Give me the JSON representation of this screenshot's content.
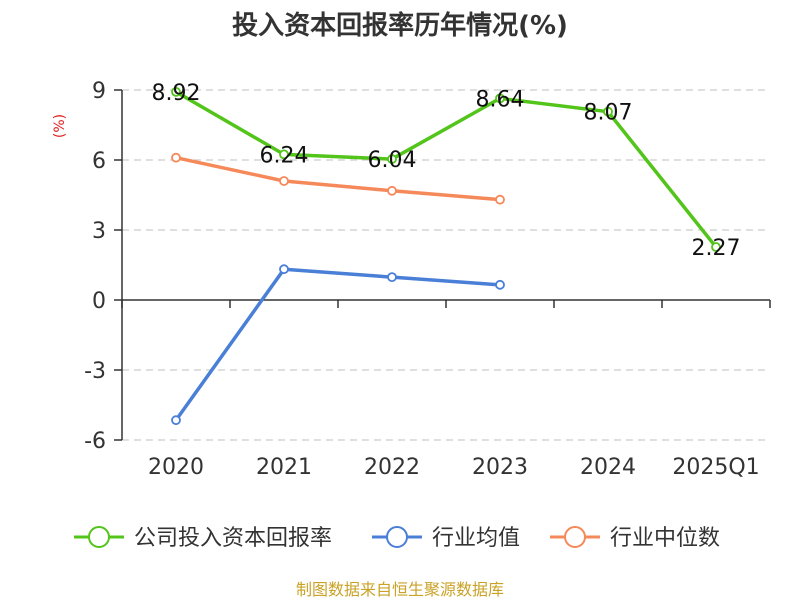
{
  "chart_data": {
    "type": "line",
    "title": "投入资本回报率历年情况(%)",
    "ylabel": "(%)",
    "categories": [
      "2020",
      "2021",
      "2022",
      "2023",
      "2024",
      "2025Q1"
    ],
    "ylim": [
      -6,
      9
    ],
    "yticks": [
      9,
      6,
      3,
      0,
      -3,
      -6
    ],
    "grid": true,
    "legend_position": "bottom",
    "series": [
      {
        "name": "公司投入资本回报率",
        "color": "#52c41a",
        "values": [
          8.92,
          6.24,
          6.04,
          8.64,
          8.07,
          2.27
        ],
        "labels": [
          "8.92",
          "6.24",
          "6.04",
          "8.64",
          "8.07",
          "2.27"
        ]
      },
      {
        "name": "行业均值",
        "color": "#4a7fd8",
        "values": [
          -5.15,
          1.32,
          0.98,
          0.65,
          null,
          null
        ]
      },
      {
        "name": "行业中位数",
        "color": "#f5895a",
        "values": [
          6.1,
          5.1,
          4.68,
          4.3,
          null,
          null
        ]
      }
    ]
  },
  "source": {
    "text": "制图数据来自恒生聚源数据库",
    "color": "#c9a227"
  },
  "ylabel_color": "#e02020"
}
